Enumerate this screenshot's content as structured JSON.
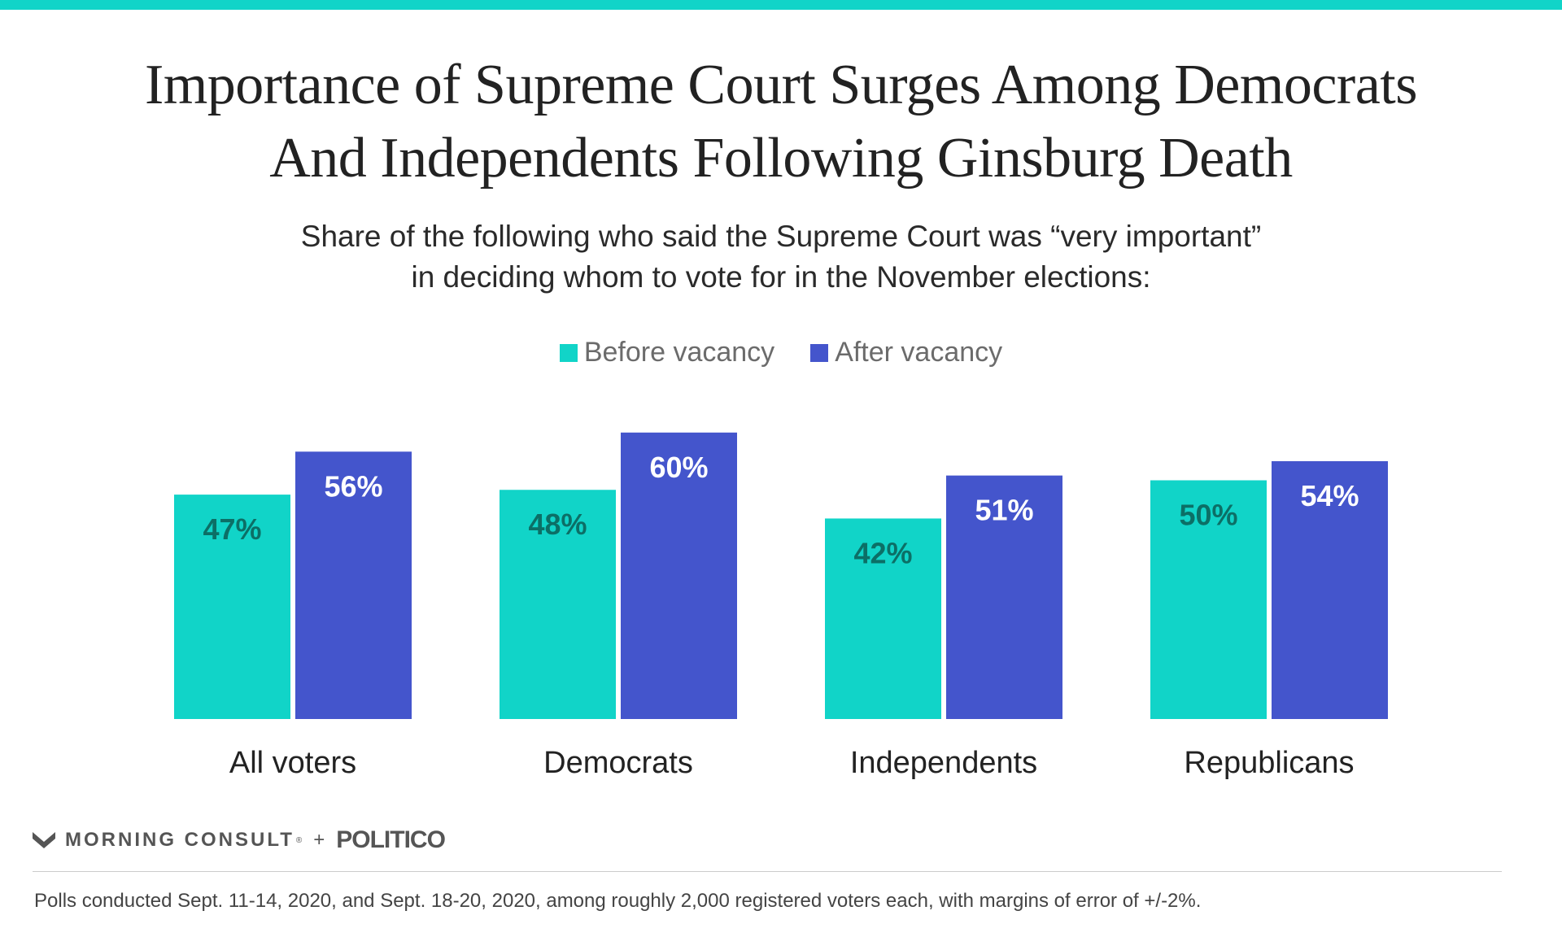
{
  "header": {
    "title_line1": "Importance of Supreme Court Surges Among Democrats",
    "title_line2": "And Independents Following Ginsburg Death",
    "subtitle_line1": "Share of the following who said the Supreme Court was “very important”",
    "subtitle_line2": "in deciding whom to vote for in the November elections:"
  },
  "chart_data": {
    "type": "bar",
    "title": "Importance of Supreme Court Surges Among Democrats And Independents Following Ginsburg Death",
    "subtitle": "Share of the following who said the Supreme Court was “very important” in deciding whom to vote for in the November elections:",
    "categories": [
      "All voters",
      "Democrats",
      "Independents",
      "Republicans"
    ],
    "series": [
      {
        "name": "Before vacancy",
        "values": [
          47,
          48,
          42,
          50
        ],
        "labels": [
          "47%",
          "48%",
          "42%",
          "50%"
        ],
        "color": "#11d4c8",
        "label_color": "#0c6f66"
      },
      {
        "name": "After vacancy",
        "values": [
          56,
          60,
          51,
          54
        ],
        "labels": [
          "56%",
          "60%",
          "51%",
          "54%"
        ],
        "color": "#4455cc",
        "label_color": "#ffffff"
      }
    ],
    "ylim": [
      0,
      60
    ],
    "grid": false,
    "legend": "top-center",
    "xlabel": "",
    "ylabel": ""
  },
  "branding": {
    "morning_consult": "MORNING CONSULT",
    "registered_mark": "®",
    "plus": "+",
    "politico": "POLITICO"
  },
  "footnote": "Polls conducted Sept. 11-14, 2020, and Sept. 18-20, 2020, among roughly 2,000 registered voters each, with margins of error of +/-2%."
}
